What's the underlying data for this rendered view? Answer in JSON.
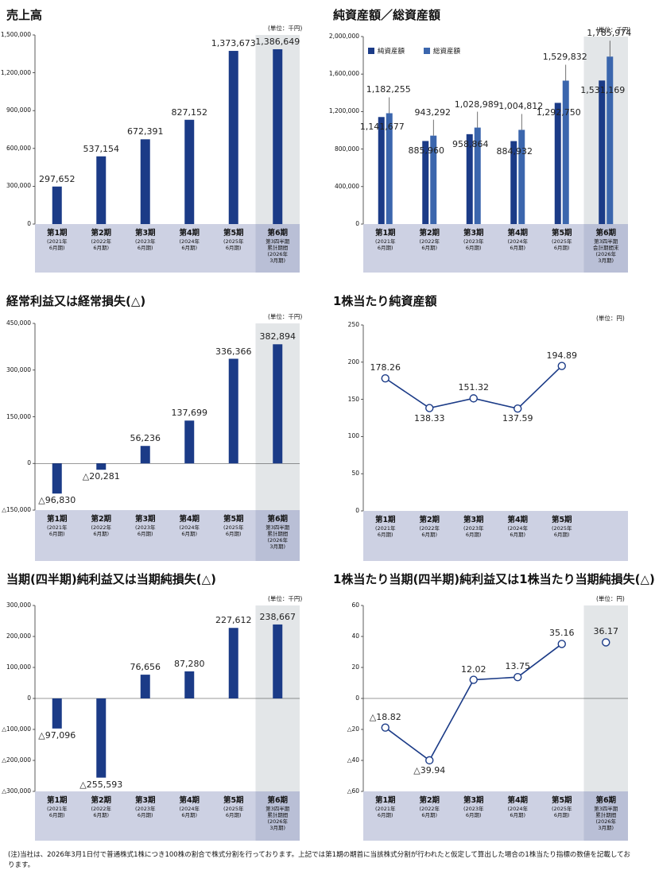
{
  "colors": {
    "bar": "#1b3b87",
    "bar_light": "#3b66ad",
    "band": "#cdd1e3",
    "highlight": "#e3e6e8",
    "line": "#1b3b87"
  },
  "footnote": "(注)当社は、2026年3月1日付で普通株式1株につき100株の割合で株式分割を行っております。上記では第1期の期首に当該株式分割が行われたと仮定して算出した場合の1株当たり指標の数値を記載しております。",
  "chart_data": [
    {
      "id": "sales",
      "type": "bar",
      "title": "売上高",
      "unit": "(単位：千円)",
      "categories": [
        {
          "n": "第1期",
          "s": "(2021年\n6月期)"
        },
        {
          "n": "第2期",
          "s": "(2022年\n6月期)"
        },
        {
          "n": "第3期",
          "s": "(2023年\n6月期)"
        },
        {
          "n": "第4期",
          "s": "(2024年\n6月期)"
        },
        {
          "n": "第5期",
          "s": "(2025年\n6月期)"
        },
        {
          "n": "第6期",
          "s": "第3四半期\n累計期間\n(2026年\n3月期)"
        }
      ],
      "values": [
        297652,
        537154,
        672391,
        827152,
        1373673,
        1386649
      ],
      "value_labels": [
        "297,652",
        "537,154",
        "672,391",
        "827,152",
        "1,373,673",
        "1,386,649"
      ],
      "ylim": [
        0,
        1500000
      ],
      "ticks": [
        "0",
        "300,000",
        "600,000",
        "900,000",
        "1,200,000",
        "1,500,000"
      ],
      "tick_values": [
        0,
        300000,
        600000,
        900000,
        1200000,
        1500000
      ],
      "highlight_last": true
    },
    {
      "id": "assets",
      "type": "bar",
      "title": "純資産額／総資産額",
      "unit": "(単位：千円)",
      "categories": [
        {
          "n": "第1期",
          "s": "(2021年\n6月期)"
        },
        {
          "n": "第2期",
          "s": "(2022年\n6月期)"
        },
        {
          "n": "第3期",
          "s": "(2023年\n6月期)"
        },
        {
          "n": "第4期",
          "s": "(2024年\n6月期)"
        },
        {
          "n": "第5期",
          "s": "(2025年\n6月期)"
        },
        {
          "n": "第6期",
          "s": "第3四半期\n会計期間末\n(2026年\n3月期)"
        }
      ],
      "series": [
        {
          "name": "純資産額",
          "values": [
            1141677,
            885960,
            958864,
            884932,
            1292750,
            1531169
          ],
          "value_labels": [
            "1,141,677",
            "885,960",
            "958,864",
            "884,932",
            "1,292,750",
            "1,531,169"
          ]
        },
        {
          "name": "総資産額",
          "values": [
            1182255,
            943292,
            1028989,
            1004812,
            1529832,
            1785974
          ],
          "value_labels": [
            "1,182,255",
            "943,292",
            "1,028,989",
            "1,004,812",
            "1,529,832",
            "1,785,974"
          ]
        }
      ],
      "ylim": [
        0,
        2000000
      ],
      "ticks": [
        "0",
        "400,000",
        "800,000",
        "1,200,000",
        "1,600,000",
        "2,000,000"
      ],
      "tick_values": [
        0,
        400000,
        800000,
        1200000,
        1600000,
        2000000
      ],
      "highlight_last": true
    },
    {
      "id": "ordinary",
      "type": "bar",
      "title": "経常利益又は経常損失(△)",
      "unit": "(単位：千円)",
      "categories": [
        {
          "n": "第1期",
          "s": "(2021年\n6月期)"
        },
        {
          "n": "第2期",
          "s": "(2022年\n6月期)"
        },
        {
          "n": "第3期",
          "s": "(2023年\n6月期)"
        },
        {
          "n": "第4期",
          "s": "(2024年\n6月期)"
        },
        {
          "n": "第5期",
          "s": "(2025年\n6月期)"
        },
        {
          "n": "第6期",
          "s": "第3四半期\n累計期間\n(2026年\n3月期)"
        }
      ],
      "values": [
        -96830,
        -20281,
        56236,
        137699,
        336366,
        382894
      ],
      "value_labels": [
        "△96,830",
        "△20,281",
        "56,236",
        "137,699",
        "336,366",
        "382,894"
      ],
      "ylim": [
        -150000,
        450000
      ],
      "ticks": [
        "△150,000",
        "0",
        "150,000",
        "300,000",
        "450,000"
      ],
      "tick_values": [
        -150000,
        0,
        150000,
        300000,
        450000
      ],
      "highlight_last": true
    },
    {
      "id": "bps",
      "type": "line",
      "title": "1株当たり純資産額",
      "unit": "(単位：円)",
      "categories": [
        {
          "n": "第1期",
          "s": "(2021年\n6月期)"
        },
        {
          "n": "第2期",
          "s": "(2022年\n6月期)"
        },
        {
          "n": "第3期",
          "s": "(2023年\n6月期)"
        },
        {
          "n": "第4期",
          "s": "(2024年\n6月期)"
        },
        {
          "n": "第5期",
          "s": "(2025年\n6月期)"
        }
      ],
      "values": [
        178.26,
        138.33,
        151.32,
        137.59,
        194.89
      ],
      "value_labels": [
        "178.26",
        "138.33",
        "151.32",
        "137.59",
        "194.89"
      ],
      "ylim": [
        0,
        250
      ],
      "ticks": [
        "0",
        "50",
        "100",
        "150",
        "200",
        "250"
      ],
      "tick_values": [
        0,
        50,
        100,
        150,
        200,
        250
      ],
      "highlight_last": false
    },
    {
      "id": "netincome",
      "type": "bar",
      "title": "当期(四半期)純利益又は当期純損失(△)",
      "unit": "(単位：千円)",
      "categories": [
        {
          "n": "第1期",
          "s": "(2021年\n6月期)"
        },
        {
          "n": "第2期",
          "s": "(2022年\n6月期)"
        },
        {
          "n": "第3期",
          "s": "(2023年\n6月期)"
        },
        {
          "n": "第4期",
          "s": "(2024年\n6月期)"
        },
        {
          "n": "第5期",
          "s": "(2025年\n6月期)"
        },
        {
          "n": "第6期",
          "s": "第3四半期\n累計期間\n(2026年\n3月期)"
        }
      ],
      "values": [
        -97096,
        -255593,
        76656,
        87280,
        227612,
        238667
      ],
      "value_labels": [
        "△97,096",
        "△255,593",
        "76,656",
        "87,280",
        "227,612",
        "238,667"
      ],
      "ylim": [
        -300000,
        300000
      ],
      "ticks": [
        "△300,000",
        "△200,000",
        "△100,000",
        "0",
        "100,000",
        "200,000",
        "300,000"
      ],
      "tick_values": [
        -300000,
        -200000,
        -100000,
        0,
        100000,
        200000,
        300000
      ],
      "highlight_last": true
    },
    {
      "id": "eps",
      "type": "line",
      "title": "1株当たり当期(四半期)純利益又は1株当たり当期純損失(△)",
      "unit": "(単位：円)",
      "categories": [
        {
          "n": "第1期",
          "s": "(2021年\n6月期)"
        },
        {
          "n": "第2期",
          "s": "(2022年\n6月期)"
        },
        {
          "n": "第3期",
          "s": "(2023年\n6月期)"
        },
        {
          "n": "第4期",
          "s": "(2024年\n6月期)"
        },
        {
          "n": "第5期",
          "s": "(2025年\n6月期)"
        },
        {
          "n": "第6期",
          "s": "第3四半期\n累計期間\n(2026年\n3月期)"
        }
      ],
      "values": [
        -18.82,
        -39.94,
        12.02,
        13.75,
        35.16,
        36.17
      ],
      "value_labels": [
        "△18.82",
        "△39.94",
        "12.02",
        "13.75",
        "35.16",
        "36.17"
      ],
      "connect_upto": 5,
      "ylim": [
        -60,
        60
      ],
      "ticks": [
        "△60",
        "△40",
        "△20",
        "0",
        "20",
        "40",
        "60"
      ],
      "tick_values": [
        -60,
        -40,
        -20,
        0,
        20,
        40,
        60
      ],
      "highlight_last": true
    }
  ]
}
